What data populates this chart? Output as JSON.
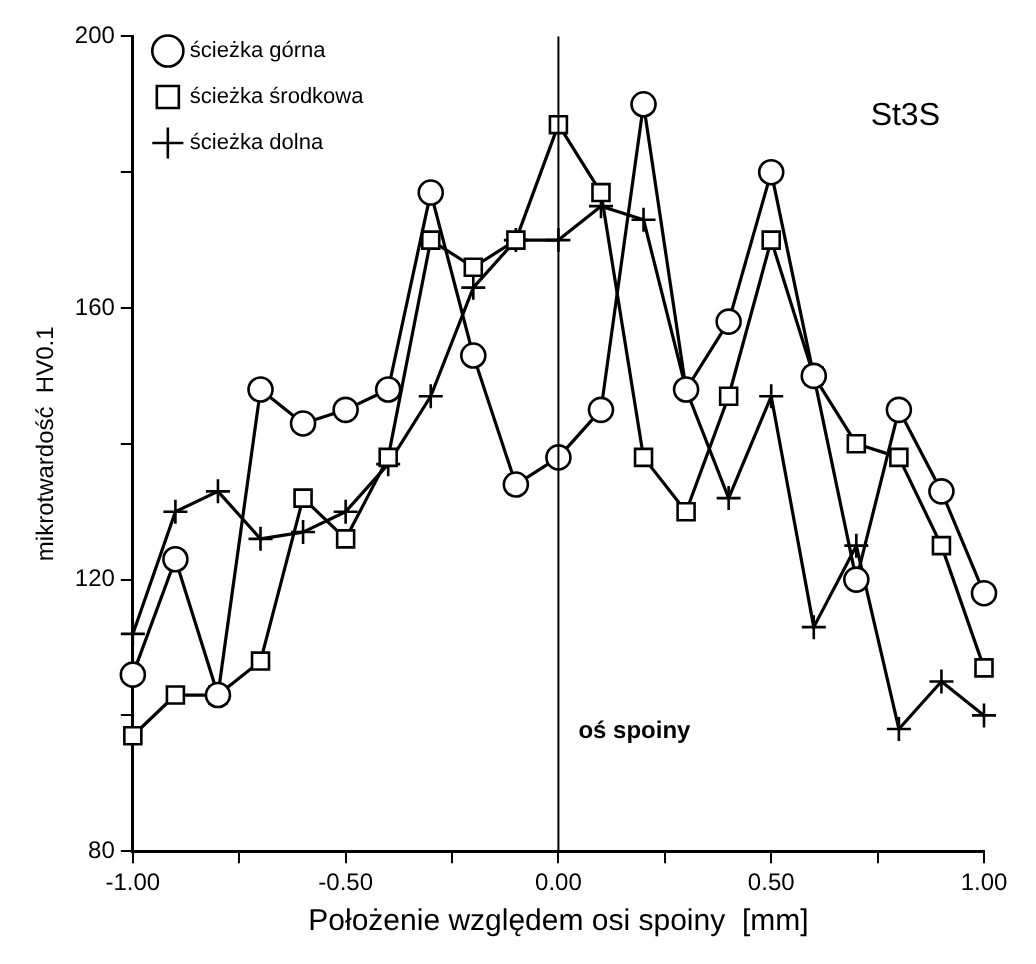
{
  "chart_data": {
    "type": "line",
    "xlabel": "Położenie względem osi spoiny  [mm]",
    "ylabel": "mikrotwardość  HV0.1",
    "x": [
      -1,
      -0.9,
      -0.8,
      -0.7,
      -0.6,
      -0.5,
      -0.4,
      -0.3,
      -0.2,
      -0.1,
      0,
      0.1,
      0.2,
      0.3,
      0.4,
      0.5,
      0.6,
      0.7,
      0.8,
      0.9,
      1
    ],
    "series": [
      {
        "name": "ścieżka górna",
        "color": "#000000",
        "marker": "circle",
        "values": [
          106,
          123,
          103,
          148,
          143,
          145,
          148,
          177,
          153,
          134,
          138,
          145,
          190,
          148,
          158,
          180,
          150,
          120,
          145,
          133,
          118
        ]
      },
      {
        "name": "ścieżka środkowa",
        "color": "#000000",
        "marker": "square",
        "values": [
          97,
          103,
          103,
          108,
          132,
          126,
          138,
          170,
          166,
          170,
          187,
          177,
          138,
          130,
          147,
          170,
          150,
          140,
          138,
          125,
          107
        ]
      },
      {
        "name": "ścieżka dolna",
        "color": "#000000",
        "marker": "cross",
        "values": [
          112,
          130,
          133,
          126,
          127,
          130,
          137,
          147,
          163,
          170,
          170,
          175,
          173,
          148,
          132,
          147,
          113,
          125,
          98,
          105,
          100
        ]
      }
    ],
    "xlim": [
      -1,
      1
    ],
    "xticks": [
      {
        "value": -1,
        "label": "-1.00"
      },
      {
        "value": -0.75,
        "label": null
      },
      {
        "value": -0.5,
        "label": "-0.50"
      },
      {
        "value": -0.25,
        "label": null
      },
      {
        "value": 0,
        "label": "0.00"
      },
      {
        "value": 0.25,
        "label": null
      },
      {
        "value": 0.5,
        "label": "0.50"
      },
      {
        "value": 0.75,
        "label": null
      },
      {
        "value": 1,
        "label": "1.00"
      }
    ],
    "ylim": [
      80,
      200
    ],
    "yticks": [
      80,
      {
        "value": 100,
        "label": null
      },
      120,
      {
        "value": 140,
        "label": null
      },
      160,
      {
        "value": 180,
        "label": null
      },
      200
    ],
    "ref_lines": [
      {
        "axis": "x",
        "value": 0,
        "label": "oś spoiny",
        "color": "#000000"
      }
    ],
    "annotations": [
      "St3S"
    ],
    "legend": "top left",
    "grid": false,
    "line_style": "solid"
  }
}
